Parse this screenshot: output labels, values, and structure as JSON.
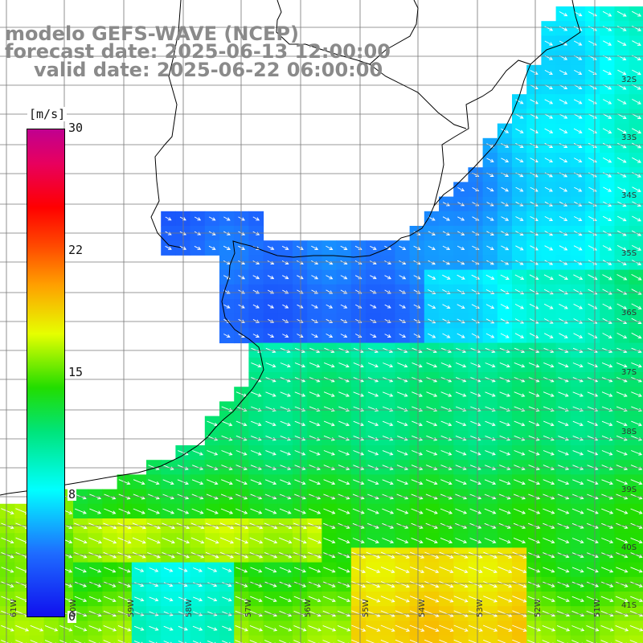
{
  "title": {
    "line1": "modelo GEFS-WAVE (NCEP)",
    "line2": "forecast date: 2025-06-13 12:00:00",
    "line3": "valid date: 2025-06-22 06:00:00"
  },
  "colorbar": {
    "unit": "[m/s]",
    "ticks": [
      "30",
      "22",
      "15",
      "8",
      "0"
    ],
    "colors": [
      "#1010ee",
      "#1e6cff",
      "#00ffff",
      "#00e47a",
      "#22dd00",
      "#e6ff00",
      "#ffa000",
      "#ff4a00",
      "#ff0000",
      "#c00090"
    ]
  },
  "lat_labels": [
    "32S",
    "33S",
    "34S",
    "35S",
    "36S",
    "37S",
    "38S",
    "39S",
    "40S",
    "41S"
  ],
  "lon_labels": [
    "61W",
    "60W",
    "59W",
    "58W",
    "57W",
    "56W",
    "55W",
    "54W",
    "53W",
    "52W",
    "51W"
  ],
  "wind_field": {
    "units": "m/s",
    "dominant_direction": "southeast"
  }
}
